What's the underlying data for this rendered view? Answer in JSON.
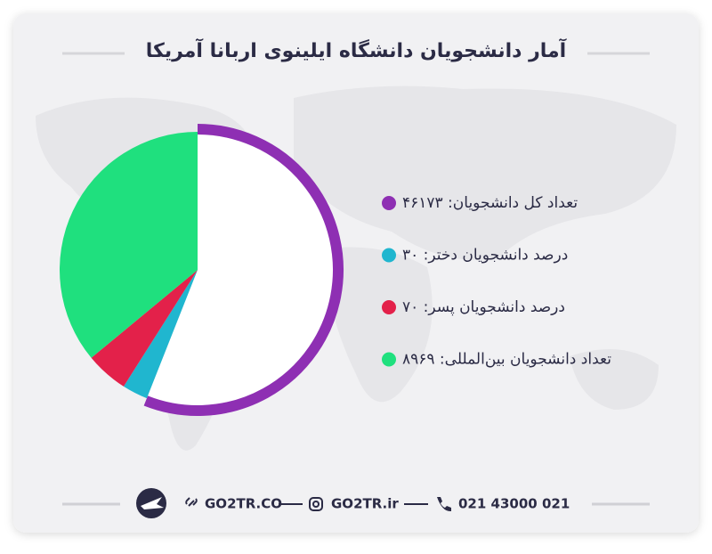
{
  "chart_data": {
    "type": "pie",
    "title": "آمار دانشجویان دانشگاه ایلینوی اربانا آمریکا",
    "series": [
      {
        "name": "تعداد کل دانشجویان: ۴۶۱۷۳",
        "color": "#8e2fb3",
        "value": 56
      },
      {
        "name": "درصد دانشجویان دختر: ۳۰",
        "color": "#20b6cf",
        "value": 3
      },
      {
        "name": "درصد دانشجویان پسر: ۷۰",
        "color": "#e3214a",
        "value": 5
      },
      {
        "name": "تعداد دانشجویان بین‌المللی: ۸۹۶۹",
        "color": "#1fe07e",
        "value": 36
      }
    ]
  },
  "footer": {
    "website": "GO2TR.CO",
    "instagram": "GO2TR.ir",
    "phone": "021 43000 021"
  }
}
